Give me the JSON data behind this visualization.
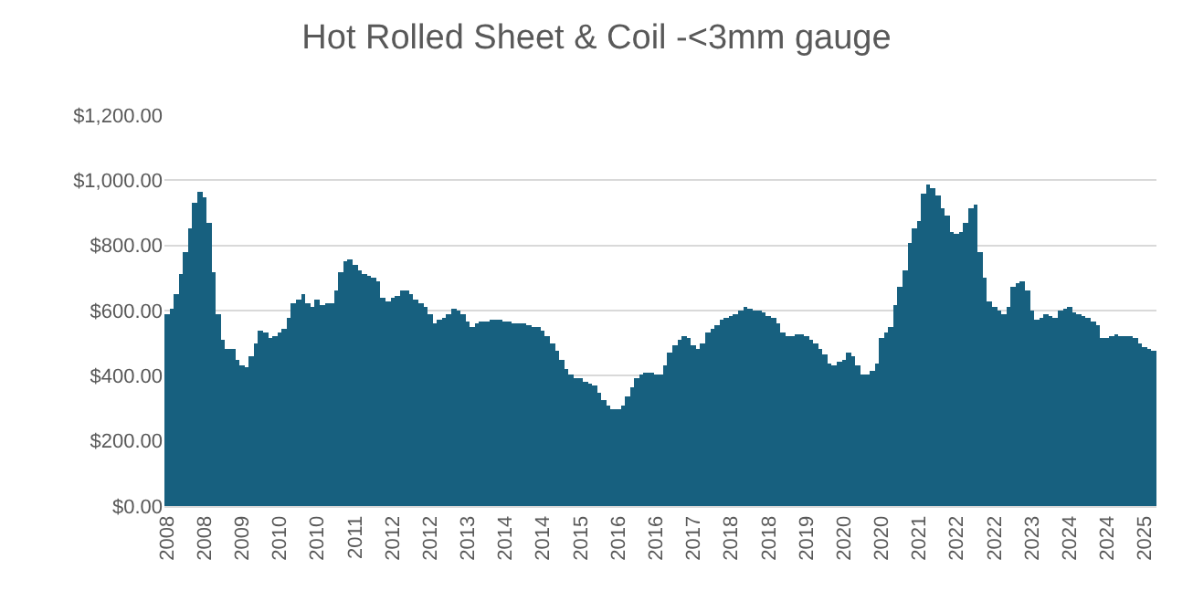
{
  "chart_data": {
    "type": "bar",
    "title": "Hot Rolled Sheet & Coil -<3mm gauge",
    "categories": [
      "2008",
      null,
      null,
      null,
      null,
      null,
      null,
      null,
      "2008",
      null,
      null,
      null,
      null,
      null,
      null,
      null,
      "2009",
      null,
      null,
      null,
      null,
      null,
      null,
      null,
      "2010",
      null,
      null,
      null,
      null,
      null,
      null,
      null,
      "2010",
      null,
      null,
      null,
      null,
      null,
      null,
      null,
      "2011",
      null,
      null,
      null,
      null,
      null,
      null,
      null,
      "2012",
      null,
      null,
      null,
      null,
      null,
      null,
      null,
      "2012",
      null,
      null,
      null,
      null,
      null,
      null,
      null,
      "2013",
      null,
      null,
      null,
      null,
      null,
      null,
      null,
      "2014",
      null,
      null,
      null,
      null,
      null,
      null,
      null,
      "2014",
      null,
      null,
      null,
      null,
      null,
      null,
      null,
      "2015",
      null,
      null,
      null,
      null,
      null,
      null,
      null,
      "2016",
      null,
      null,
      null,
      null,
      null,
      null,
      null,
      "2016",
      null,
      null,
      null,
      null,
      null,
      null,
      null,
      "2017",
      null,
      null,
      null,
      null,
      null,
      null,
      null,
      "2018",
      null,
      null,
      null,
      null,
      null,
      null,
      null,
      "2018",
      null,
      null,
      null,
      null,
      null,
      null,
      null,
      "2019",
      null,
      null,
      null,
      null,
      null,
      null,
      null,
      "2020",
      null,
      null,
      null,
      null,
      null,
      null,
      null,
      "2020",
      null,
      null,
      null,
      null,
      null,
      null,
      null,
      "2021",
      null,
      null,
      null,
      null,
      null,
      null,
      null,
      "2022",
      null,
      null,
      null,
      null,
      null,
      null,
      null,
      "2022",
      null,
      null,
      null,
      null,
      null,
      null,
      null,
      "2023",
      null,
      null,
      null,
      null,
      null,
      null,
      null,
      "2024",
      null,
      null,
      null,
      null,
      null,
      null,
      null,
      "2024",
      null,
      null,
      null,
      null,
      null,
      null,
      null,
      "2025",
      null,
      null
    ],
    "values": [
      590,
      605,
      650,
      710,
      780,
      850,
      930,
      965,
      950,
      870,
      720,
      590,
      510,
      480,
      480,
      450,
      430,
      425,
      460,
      500,
      540,
      535,
      515,
      520,
      530,
      545,
      575,
      625,
      635,
      650,
      620,
      610,
      635,
      615,
      620,
      625,
      660,
      720,
      750,
      755,
      740,
      725,
      710,
      705,
      700,
      690,
      640,
      630,
      640,
      645,
      660,
      660,
      650,
      635,
      625,
      613,
      590,
      560,
      570,
      575,
      590,
      607,
      600,
      589,
      565,
      551,
      560,
      566,
      565,
      570,
      572,
      572,
      568,
      565,
      561,
      560,
      558,
      555,
      551,
      551,
      540,
      523,
      500,
      477,
      450,
      421,
      405,
      395,
      390,
      380,
      374,
      370,
      345,
      327,
      310,
      298,
      295,
      310,
      335,
      365,
      390,
      405,
      408,
      407,
      405,
      405,
      430,
      470,
      495,
      510,
      520,
      515,
      495,
      482,
      500,
      530,
      545,
      555,
      570,
      578,
      585,
      590,
      600,
      611,
      605,
      600,
      598,
      592,
      585,
      579,
      560,
      535,
      520,
      520,
      525,
      527,
      520,
      510,
      500,
      485,
      467,
      440,
      434,
      443,
      450,
      471,
      458,
      430,
      402,
      405,
      415,
      440,
      514,
      530,
      548,
      617,
      673,
      725,
      807,
      850,
      873,
      960,
      987,
      975,
      953,
      912,
      890,
      840,
      836,
      841,
      869,
      915,
      925,
      779,
      700,
      630,
      611,
      600,
      589,
      613,
      673,
      685,
      692,
      664,
      600,
      574,
      580,
      589,
      585,
      579,
      598,
      605,
      611,
      593,
      590,
      585,
      579,
      565,
      557,
      514,
      515,
      523,
      525,
      523,
      520,
      520,
      514,
      500,
      486,
      480,
      477
    ],
    "color": "#17607f",
    "ylim": [
      0,
      1200
    ],
    "yticks": [
      {
        "value": 0,
        "label": "$0.00"
      },
      {
        "value": 200,
        "label": "$200.00"
      },
      {
        "value": 400,
        "label": "$400.00"
      },
      {
        "value": 600,
        "label": "$600.00"
      },
      {
        "value": 800,
        "label": "$800.00"
      },
      {
        "value": 1000,
        "label": "$1,000.00"
      },
      {
        "value": 1200,
        "label": "$1,200.00"
      }
    ],
    "grid": "y"
  }
}
